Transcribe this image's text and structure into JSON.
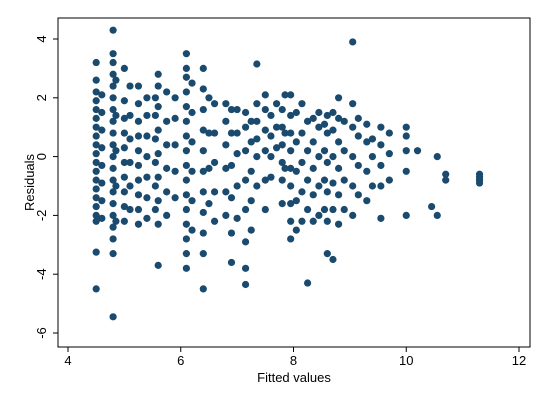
{
  "chart_data": {
    "type": "scatter",
    "title": "",
    "xlabel": "Fitted values",
    "ylabel": "Residuals",
    "xlim": [
      4,
      12
    ],
    "ylim": [
      -6,
      4
    ],
    "x_ticks": [
      4,
      6,
      8,
      10,
      12
    ],
    "y_ticks": [
      -6,
      -4,
      -2,
      0,
      2,
      4
    ],
    "x_tick_labels": [
      "4",
      "6",
      "8",
      "10",
      "12"
    ],
    "y_tick_labels": [
      "-6",
      "-4",
      "-2",
      "0",
      "2",
      "4"
    ],
    "grid": false,
    "marker_color": "#1a4a6e",
    "series": [
      {
        "points": [
          [
            4.5,
            -4.5
          ],
          [
            4.5,
            -3.25
          ],
          [
            4.5,
            -2.2
          ],
          [
            4.5,
            -2.0
          ],
          [
            4.5,
            -1.7
          ],
          [
            4.5,
            -1.4
          ],
          [
            4.5,
            -1.1
          ],
          [
            4.5,
            -0.8
          ],
          [
            4.5,
            -0.5
          ],
          [
            4.5,
            -0.2
          ],
          [
            4.5,
            0.1
          ],
          [
            4.5,
            0.4
          ],
          [
            4.5,
            0.7
          ],
          [
            4.5,
            1.0
          ],
          [
            4.5,
            1.3
          ],
          [
            4.5,
            1.6
          ],
          [
            4.5,
            1.9
          ],
          [
            4.5,
            2.2
          ],
          [
            4.5,
            2.6
          ],
          [
            4.5,
            3.2
          ],
          [
            4.6,
            -2.1
          ],
          [
            4.6,
            -1.5
          ],
          [
            4.6,
            -0.9
          ],
          [
            4.6,
            -0.3
          ],
          [
            4.6,
            0.3
          ],
          [
            4.6,
            0.9
          ],
          [
            4.6,
            1.5
          ],
          [
            4.6,
            2.1
          ],
          [
            4.8,
            -5.45
          ],
          [
            4.8,
            -3.3
          ],
          [
            4.8,
            -2.8
          ],
          [
            4.8,
            -2.4
          ],
          [
            4.8,
            -2.0
          ],
          [
            4.8,
            -1.6
          ],
          [
            4.8,
            -1.2
          ],
          [
            4.8,
            -0.8
          ],
          [
            4.8,
            -0.4
          ],
          [
            4.8,
            0.0
          ],
          [
            4.8,
            0.4
          ],
          [
            4.8,
            0.8
          ],
          [
            4.8,
            1.2
          ],
          [
            4.8,
            1.6
          ],
          [
            4.8,
            2.0
          ],
          [
            4.8,
            2.4
          ],
          [
            4.8,
            2.8
          ],
          [
            4.8,
            3.2
          ],
          [
            4.8,
            3.5
          ],
          [
            4.8,
            4.3
          ],
          [
            4.85,
            -2.2
          ],
          [
            4.85,
            -1.0
          ],
          [
            4.85,
            0.2
          ],
          [
            4.85,
            1.4
          ],
          [
            4.85,
            2.6
          ],
          [
            5.0,
            -2.2
          ],
          [
            5.0,
            -1.7
          ],
          [
            5.0,
            -1.2
          ],
          [
            5.0,
            -0.7
          ],
          [
            5.0,
            -0.2
          ],
          [
            5.0,
            0.3
          ],
          [
            5.0,
            0.8
          ],
          [
            5.0,
            1.3
          ],
          [
            5.0,
            1.9
          ],
          [
            5.0,
            3.0
          ],
          [
            5.1,
            -1.8
          ],
          [
            5.1,
            -1.0
          ],
          [
            5.1,
            -0.2
          ],
          [
            5.1,
            0.6
          ],
          [
            5.1,
            1.4
          ],
          [
            5.1,
            2.4
          ],
          [
            5.25,
            -2.3
          ],
          [
            5.25,
            -1.8
          ],
          [
            5.25,
            -1.3
          ],
          [
            5.25,
            -0.8
          ],
          [
            5.25,
            -0.3
          ],
          [
            5.25,
            0.2
          ],
          [
            5.25,
            0.7
          ],
          [
            5.25,
            1.2
          ],
          [
            5.25,
            1.8
          ],
          [
            5.25,
            2.4
          ],
          [
            5.4,
            -2.1
          ],
          [
            5.4,
            -1.4
          ],
          [
            5.4,
            -0.7
          ],
          [
            5.4,
            0.0
          ],
          [
            5.4,
            0.7
          ],
          [
            5.4,
            1.4
          ],
          [
            5.4,
            2.0
          ],
          [
            5.55,
            -1.8
          ],
          [
            5.55,
            -1.0
          ],
          [
            5.55,
            -0.2
          ],
          [
            5.55,
            0.6
          ],
          [
            5.55,
            1.4
          ],
          [
            5.55,
            2.0
          ],
          [
            5.6,
            -3.7
          ],
          [
            5.6,
            -2.3
          ],
          [
            5.6,
            -1.5
          ],
          [
            5.6,
            -0.7
          ],
          [
            5.6,
            0.1
          ],
          [
            5.6,
            0.9
          ],
          [
            5.6,
            1.7
          ],
          [
            5.6,
            2.4
          ],
          [
            5.6,
            2.8
          ],
          [
            5.75,
            -2.0
          ],
          [
            5.75,
            -1.2
          ],
          [
            5.75,
            -0.4
          ],
          [
            5.75,
            0.4
          ],
          [
            5.75,
            1.2
          ],
          [
            5.75,
            2.2
          ],
          [
            5.9,
            -1.4
          ],
          [
            5.9,
            -0.5
          ],
          [
            5.9,
            0.4
          ],
          [
            5.9,
            1.3
          ],
          [
            5.9,
            2.0
          ],
          [
            6.1,
            -3.8
          ],
          [
            6.1,
            -3.3
          ],
          [
            6.1,
            -2.8
          ],
          [
            6.1,
            -2.3
          ],
          [
            6.1,
            -1.8
          ],
          [
            6.1,
            -1.3
          ],
          [
            6.1,
            -0.8
          ],
          [
            6.1,
            -0.3
          ],
          [
            6.1,
            0.2
          ],
          [
            6.1,
            0.7
          ],
          [
            6.1,
            1.2
          ],
          [
            6.1,
            1.7
          ],
          [
            6.1,
            2.2
          ],
          [
            6.1,
            2.7
          ],
          [
            6.1,
            3.0
          ],
          [
            6.1,
            3.5
          ],
          [
            6.2,
            -2.5
          ],
          [
            6.2,
            -1.5
          ],
          [
            6.2,
            -0.5
          ],
          [
            6.2,
            0.5
          ],
          [
            6.2,
            1.5
          ],
          [
            6.2,
            2.5
          ],
          [
            6.4,
            -4.5
          ],
          [
            6.4,
            -3.3
          ],
          [
            6.4,
            -2.6
          ],
          [
            6.4,
            -1.9
          ],
          [
            6.4,
            -1.2
          ],
          [
            6.4,
            -0.5
          ],
          [
            6.4,
            0.2
          ],
          [
            6.4,
            0.9
          ],
          [
            6.4,
            1.6
          ],
          [
            6.4,
            2.3
          ],
          [
            6.4,
            3.0
          ],
          [
            6.5,
            -1.6
          ],
          [
            6.5,
            -0.4
          ],
          [
            6.5,
            0.8
          ],
          [
            6.5,
            2.0
          ],
          [
            6.6,
            -2.2
          ],
          [
            6.6,
            -1.2
          ],
          [
            6.6,
            -0.2
          ],
          [
            6.6,
            0.8
          ],
          [
            6.6,
            1.8
          ],
          [
            6.8,
            -2.0
          ],
          [
            6.8,
            -1.2
          ],
          [
            6.8,
            -0.4
          ],
          [
            6.8,
            0.4
          ],
          [
            6.8,
            1.2
          ],
          [
            6.8,
            1.8
          ],
          [
            6.9,
            -3.6
          ],
          [
            6.9,
            -2.6
          ],
          [
            6.9,
            -1.4
          ],
          [
            6.9,
            -0.3
          ],
          [
            6.9,
            0.8
          ],
          [
            6.9,
            1.6
          ],
          [
            7.0,
            -2.1
          ],
          [
            7.0,
            -1.0
          ],
          [
            7.0,
            0.1
          ],
          [
            7.0,
            0.8
          ],
          [
            7.0,
            1.6
          ],
          [
            7.15,
            -4.35
          ],
          [
            7.15,
            -3.8
          ],
          [
            7.15,
            -2.9
          ],
          [
            7.15,
            -1.8
          ],
          [
            7.15,
            -0.8
          ],
          [
            7.15,
            0.2
          ],
          [
            7.15,
            1.0
          ],
          [
            7.15,
            1.5
          ],
          [
            7.25,
            -2.5
          ],
          [
            7.25,
            -1.5
          ],
          [
            7.25,
            -0.5
          ],
          [
            7.25,
            0.5
          ],
          [
            7.25,
            1.2
          ],
          [
            7.35,
            3.15
          ],
          [
            7.35,
            1.8
          ],
          [
            7.35,
            1.2
          ],
          [
            7.35,
            0.6
          ],
          [
            7.35,
            0.0
          ],
          [
            7.35,
            -1.0
          ],
          [
            7.5,
            -1.8
          ],
          [
            7.5,
            -0.8
          ],
          [
            7.5,
            0.2
          ],
          [
            7.5,
            0.9
          ],
          [
            7.5,
            1.6
          ],
          [
            7.5,
            2.1
          ],
          [
            7.6,
            1.4
          ],
          [
            7.6,
            0.7
          ],
          [
            7.6,
            0.0
          ],
          [
            7.6,
            -0.7
          ],
          [
            7.7,
            1.8
          ],
          [
            7.7,
            1.0
          ],
          [
            7.7,
            0.3
          ],
          [
            7.8,
            1.6
          ],
          [
            7.8,
            1.0
          ],
          [
            7.8,
            0.4
          ],
          [
            7.8,
            -0.2
          ],
          [
            7.8,
            -0.8
          ],
          [
            7.8,
            -1.6
          ],
          [
            7.85,
            2.1
          ],
          [
            7.85,
            0.8
          ],
          [
            7.85,
            -0.4
          ],
          [
            7.95,
            -2.8
          ],
          [
            7.95,
            -2.2
          ],
          [
            7.95,
            -1.6
          ],
          [
            7.95,
            -1.0
          ],
          [
            7.95,
            -0.4
          ],
          [
            7.95,
            0.2
          ],
          [
            7.95,
            0.8
          ],
          [
            7.95,
            1.4
          ],
          [
            7.95,
            2.1
          ],
          [
            8.05,
            -2.5
          ],
          [
            8.05,
            -1.5
          ],
          [
            8.05,
            -0.5
          ],
          [
            8.05,
            0.5
          ],
          [
            8.05,
            1.5
          ],
          [
            8.15,
            -2.2
          ],
          [
            8.15,
            -1.2
          ],
          [
            8.15,
            -0.2
          ],
          [
            8.15,
            0.8
          ],
          [
            8.15,
            1.8
          ],
          [
            8.25,
            -4.3
          ],
          [
            8.25,
            -1.8
          ],
          [
            8.25,
            -0.8
          ],
          [
            8.25,
            0.2
          ],
          [
            8.25,
            1.2
          ],
          [
            8.35,
            -2.2
          ],
          [
            8.35,
            -1.3
          ],
          [
            8.35,
            -0.4
          ],
          [
            8.35,
            0.5
          ],
          [
            8.35,
            1.3
          ],
          [
            8.45,
            -2.0
          ],
          [
            8.45,
            -1.0
          ],
          [
            8.45,
            0.0
          ],
          [
            8.45,
            1.0
          ],
          [
            8.45,
            1.5
          ],
          [
            8.55,
            -1.8
          ],
          [
            8.55,
            -0.8
          ],
          [
            8.55,
            0.2
          ],
          [
            8.55,
            1.1
          ],
          [
            8.6,
            -3.3
          ],
          [
            8.6,
            -2.2
          ],
          [
            8.6,
            -1.2
          ],
          [
            8.6,
            -0.2
          ],
          [
            8.6,
            0.8
          ],
          [
            8.6,
            1.4
          ],
          [
            8.7,
            -3.5
          ],
          [
            8.7,
            -1.8
          ],
          [
            8.7,
            -0.9
          ],
          [
            8.7,
            0.0
          ],
          [
            8.7,
            0.9
          ],
          [
            8.7,
            1.5
          ],
          [
            8.8,
            -2.3
          ],
          [
            8.8,
            -1.3
          ],
          [
            8.8,
            -0.4
          ],
          [
            8.8,
            0.5
          ],
          [
            8.8,
            1.3
          ],
          [
            8.8,
            2.0
          ],
          [
            8.9,
            -1.8
          ],
          [
            8.9,
            -0.8
          ],
          [
            8.9,
            0.2
          ],
          [
            8.9,
            1.2
          ],
          [
            9.05,
            3.9
          ],
          [
            9.05,
            -2.0
          ],
          [
            9.05,
            -1.0
          ],
          [
            9.05,
            0.0
          ],
          [
            9.05,
            1.0
          ],
          [
            9.05,
            1.8
          ],
          [
            9.15,
            -1.3
          ],
          [
            9.15,
            -0.3
          ],
          [
            9.15,
            0.7
          ],
          [
            9.15,
            1.3
          ],
          [
            9.3,
            -1.5
          ],
          [
            9.3,
            -0.5
          ],
          [
            9.3,
            0.5
          ],
          [
            9.3,
            1.1
          ],
          [
            9.4,
            -1.0
          ],
          [
            9.4,
            0.0
          ],
          [
            9.4,
            0.6
          ],
          [
            9.55,
            -2.1
          ],
          [
            9.55,
            -1.0
          ],
          [
            9.55,
            -0.3
          ],
          [
            9.55,
            0.4
          ],
          [
            9.55,
            1.0
          ],
          [
            9.7,
            -0.8
          ],
          [
            9.7,
            0.1
          ],
          [
            9.7,
            0.8
          ],
          [
            10.0,
            -2.0
          ],
          [
            10.0,
            -0.5
          ],
          [
            10.0,
            0.2
          ],
          [
            10.0,
            0.7
          ],
          [
            10.0,
            1.0
          ],
          [
            10.2,
            0.2
          ],
          [
            10.45,
            -1.7
          ],
          [
            10.55,
            -2.0
          ],
          [
            10.55,
            0.0
          ],
          [
            10.7,
            -0.6
          ],
          [
            10.7,
            -0.8
          ],
          [
            11.3,
            -0.6
          ],
          [
            11.3,
            -0.7
          ],
          [
            11.3,
            -0.8
          ],
          [
            11.3,
            -0.9
          ]
        ]
      }
    ]
  }
}
